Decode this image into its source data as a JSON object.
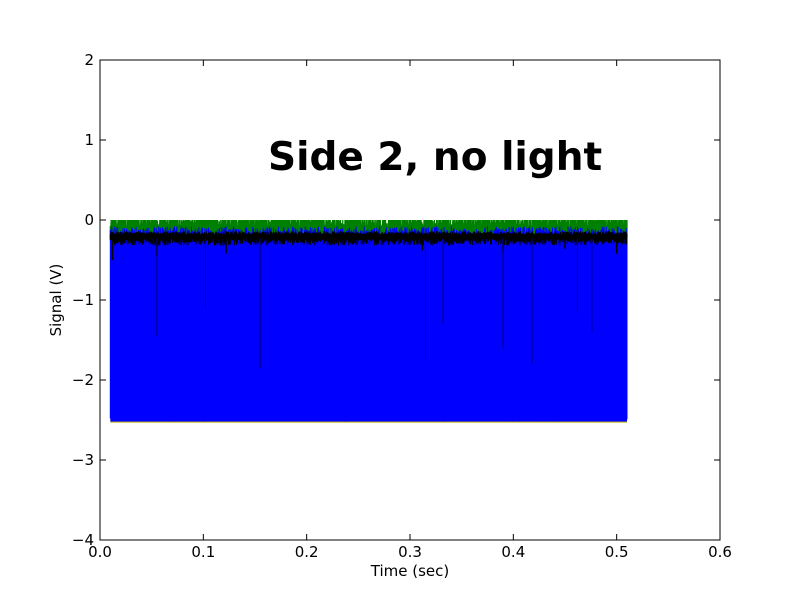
{
  "chart_data": {
    "type": "line",
    "title": "",
    "annotation": "Side 2, no light",
    "xlabel": "Time (sec)",
    "ylabel": "Signal (V)",
    "xlim": [
      0.0,
      0.6
    ],
    "ylim": [
      -4,
      2
    ],
    "x_ticks": [
      0.0,
      0.1,
      0.2,
      0.3,
      0.4,
      0.5,
      0.6
    ],
    "x_tick_labels": [
      "0.0",
      "0.1",
      "0.2",
      "0.3",
      "0.4",
      "0.5",
      "0.6"
    ],
    "y_ticks": [
      -4,
      -3,
      -2,
      -1,
      0,
      1,
      2
    ],
    "y_tick_labels": [
      "−4",
      "−3",
      "−2",
      "−1",
      "0",
      "1",
      "2"
    ],
    "grid": false,
    "legend": "none",
    "x_range": [
      0.01,
      0.51
    ],
    "series": [
      {
        "color": "#008000",
        "baseline": -0.05,
        "envelope": [
          -0.25,
          0.0
        ]
      },
      {
        "color": "#0000ff",
        "envelope": [
          -2.52,
          -0.25
        ],
        "spikes": [
          {
            "x": 0.055,
            "y": -1.45
          },
          {
            "x": 0.102,
            "y": -1.1
          },
          {
            "x": 0.155,
            "y": -1.85
          },
          {
            "x": 0.315,
            "y": -1.75
          },
          {
            "x": 0.332,
            "y": -1.3
          },
          {
            "x": 0.39,
            "y": -1.6
          },
          {
            "x": 0.418,
            "y": -1.8
          },
          {
            "x": 0.462,
            "y": -1.15
          },
          {
            "x": 0.476,
            "y": -1.4
          }
        ]
      },
      {
        "color": "#000000",
        "baseline": -0.23,
        "envelope": [
          -0.32,
          -0.18
        ],
        "dips": [
          {
            "x": 0.012,
            "y": -0.5
          },
          {
            "x": 0.055,
            "y": -0.45
          },
          {
            "x": 0.122,
            "y": -0.42
          },
          {
            "x": 0.312,
            "y": -0.38
          },
          {
            "x": 0.39,
            "y": -0.4
          },
          {
            "x": 0.45,
            "y": -0.36
          },
          {
            "x": 0.5,
            "y": -0.42
          }
        ]
      },
      {
        "color": "#bfbf00",
        "baseline": -2.52,
        "envelope": [
          -2.54,
          -2.5
        ]
      }
    ]
  }
}
